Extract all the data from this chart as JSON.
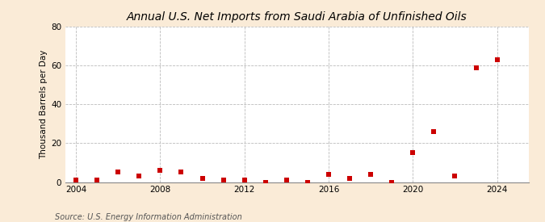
{
  "title": "Annual U.S. Net Imports from Saudi Arabia of Unfinished Oils",
  "ylabel": "Thousand Barrels per Day",
  "source": "Source: U.S. Energy Information Administration",
  "background_color": "#faebd7",
  "plot_background": "#ffffff",
  "marker_color": "#cc0000",
  "years": [
    2004,
    2005,
    2006,
    2007,
    2008,
    2009,
    2010,
    2011,
    2012,
    2013,
    2014,
    2015,
    2016,
    2017,
    2018,
    2019,
    2020,
    2021,
    2022,
    2023,
    2024
  ],
  "values": [
    1,
    1,
    5,
    3,
    6,
    5,
    2,
    1,
    1,
    0,
    1,
    0,
    4,
    2,
    4,
    0,
    15,
    26,
    3,
    59,
    63
  ],
  "ylim": [
    0,
    80
  ],
  "yticks": [
    0,
    20,
    40,
    60,
    80
  ],
  "xlim": [
    2003.5,
    2025.5
  ],
  "xticks": [
    2004,
    2008,
    2012,
    2016,
    2020,
    2024
  ],
  "title_fontsize": 10,
  "label_fontsize": 7.5,
  "tick_fontsize": 7.5,
  "source_fontsize": 7,
  "marker_size": 4,
  "grid_color": "#bbbbbb",
  "grid_style": "--",
  "vline_color": "#bbbbbb",
  "vline_style": "--"
}
